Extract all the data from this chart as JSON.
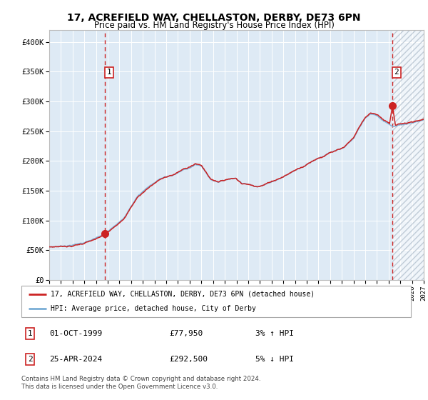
{
  "title": "17, ACREFIELD WAY, CHELLASTON, DERBY, DE73 6PN",
  "subtitle": "Price paid vs. HM Land Registry's House Price Index (HPI)",
  "legend_line1": "17, ACREFIELD WAY, CHELLASTON, DERBY, DE73 6PN (detached house)",
  "legend_line2": "HPI: Average price, detached house, City of Derby",
  "annotation1_date": "01-OCT-1999",
  "annotation1_price": 77950,
  "annotation1_hpi": "3% ↑ HPI",
  "annotation2_date": "25-APR-2024",
  "annotation2_price": 292500,
  "annotation2_hpi": "5% ↓ HPI",
  "footer": "Contains HM Land Registry data © Crown copyright and database right 2024.\nThis data is licensed under the Open Government Licence v3.0.",
  "hpi_color": "#7aaed6",
  "price_color": "#cc2222",
  "marker_color": "#cc2222",
  "vline_color": "#cc2222",
  "bg_color": "#deeaf5",
  "grid_color": "#ffffff",
  "ylim": [
    0,
    420000
  ],
  "yticks": [
    0,
    50000,
    100000,
    150000,
    200000,
    250000,
    300000,
    350000,
    400000
  ],
  "x_start_year": 1995,
  "x_end_year": 2027,
  "sale1_x": 1999.75,
  "sale2_x": 2024.32,
  "title_fontsize": 10,
  "subtitle_fontsize": 8.5
}
